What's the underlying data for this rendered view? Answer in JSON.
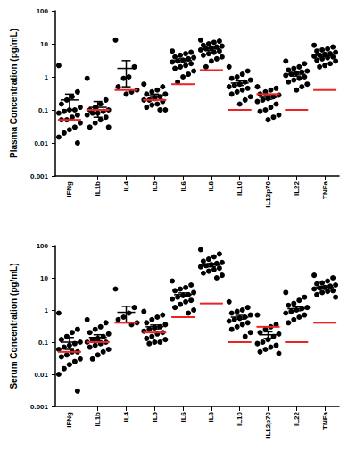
{
  "chart_data": [
    {
      "type": "scatter",
      "ylabel": "Plasma Concentration (pg/mL)",
      "categories": [
        "IFNg",
        "IL1b",
        "IL4",
        "IL5",
        "IL6",
        "IL8",
        "IL10",
        "IL12p70",
        "IL22",
        "TNFa"
      ],
      "log": "y",
      "grid": false,
      "ylim": [
        0.001,
        100
      ],
      "yticks": [
        0.001,
        0.01,
        0.1,
        1,
        10,
        100
      ],
      "series": [
        {
          "type": "scatter",
          "marker": "circle",
          "color": "#000000",
          "values": [
            [
              2.2,
              0.35,
              0.25,
              0.2,
              0.15,
              0.12,
              0.1,
              0.1,
              0.09,
              0.08,
              0.07,
              0.06,
              0.05,
              0.05,
              0.04,
              0.03,
              0.025,
              0.02,
              0.015,
              0.01
            ],
            [
              0.9,
              0.2,
              0.15,
              0.12,
              0.1,
              0.1,
              0.09,
              0.08,
              0.08,
              0.07,
              0.06,
              0.05,
              0.04,
              0.03,
              0.03
            ],
            [
              13,
              2,
              1,
              0.9,
              0.5,
              0.4,
              0.35,
              0.3
            ],
            [
              0.6,
              0.5,
              0.4,
              0.35,
              0.3,
              0.3,
              0.25,
              0.22,
              0.2,
              0.2,
              0.18,
              0.15,
              0.14,
              0.12,
              0.1,
              0.1
            ],
            [
              6,
              5.5,
              5,
              4.5,
              4,
              3.8,
              3.5,
              3.2,
              3,
              2.8,
              2.5,
              2.2,
              2,
              1.8,
              1.5,
              1.2,
              1,
              0.7
            ],
            [
              13,
              12,
              11,
              10,
              9,
              8.5,
              8,
              7.5,
              7,
              6.5,
              6,
              5.5,
              5,
              4.5,
              4,
              3.5,
              3,
              2
            ],
            [
              2,
              1.5,
              1.2,
              1,
              0.9,
              0.8,
              0.7,
              0.6,
              0.55,
              0.5,
              0.45,
              0.4,
              0.35,
              0.3,
              0.25,
              0.2,
              0.15
            ],
            [
              0.5,
              0.45,
              0.4,
              0.35,
              0.3,
              0.28,
              0.25,
              0.22,
              0.2,
              0.18,
              0.15,
              0.12,
              0.1,
              0.09,
              0.07,
              0.06,
              0.05
            ],
            [
              3,
              2.5,
              2,
              1.8,
              1.6,
              1.5,
              1.4,
              1.3,
              1.2,
              1.1,
              1,
              0.9,
              0.8,
              0.7,
              0.6,
              0.5,
              0.4
            ],
            [
              9,
              8,
              7,
              6.5,
              6,
              5.5,
              5,
              4.8,
              4.5,
              4.2,
              4,
              3.8,
              3.5,
              3.2,
              3,
              2.5,
              2.2,
              2
            ]
          ],
          "mean": [
            0.2,
            0.12,
            1.8,
            0.27,
            3.1,
            7,
            0.65,
            0.24,
            1.2,
            4.5
          ],
          "error": [
            0.1,
            0.06,
            1.3,
            0.03,
            0.4,
            0.7,
            0.1,
            0.03,
            0.15,
            0.4
          ]
        },
        {
          "type": "scatter",
          "marker": "line",
          "color": "#ee2222",
          "values": [
            0.05,
            0.1,
            0.4,
            0.2,
            0.6,
            1.6,
            0.1,
            0.3,
            0.1,
            0.4
          ]
        }
      ]
    },
    {
      "type": "scatter",
      "ylabel": "Serum Concentration (pg/mL)",
      "categories": [
        "IFNg",
        "IL1b",
        "IL4",
        "IL5",
        "IL6",
        "IL8",
        "IL10",
        "IL12p70",
        "IL22",
        "TNFa"
      ],
      "log": "y",
      "grid": false,
      "ylim": [
        0.001,
        100
      ],
      "yticks": [
        0.001,
        0.01,
        0.1,
        1,
        10,
        100
      ],
      "series": [
        {
          "type": "scatter",
          "marker": "circle",
          "color": "#000000",
          "values": [
            [
              0.8,
              0.25,
              0.2,
              0.15,
              0.12,
              0.1,
              0.09,
              0.08,
              0.07,
              0.06,
              0.05,
              0.05,
              0.04,
              0.035,
              0.03,
              0.025,
              0.02,
              0.015,
              0.01,
              0.003
            ],
            [
              0.5,
              0.4,
              0.3,
              0.25,
              0.2,
              0.18,
              0.15,
              0.13,
              0.12,
              0.1,
              0.1,
              0.09,
              0.08,
              0.07,
              0.06,
              0.05,
              0.04,
              0.03
            ],
            [
              4.5,
              1.2,
              0.8,
              0.6,
              0.5,
              0.4,
              0.35
            ],
            [
              0.9,
              0.7,
              0.6,
              0.5,
              0.4,
              0.35,
              0.3,
              0.28,
              0.25,
              0.22,
              0.2,
              0.18,
              0.15,
              0.13,
              0.12,
              0.1,
              0.1,
              0.09
            ],
            [
              8,
              6,
              5,
              4.5,
              4,
              3.5,
              3,
              2.8,
              2.5,
              2.2,
              2,
              1.8,
              1.5,
              1.2,
              1,
              0.8
            ],
            [
              75,
              55,
              45,
              38,
              33,
              30,
              28,
              26,
              24,
              22,
              20,
              18,
              16,
              14,
              12,
              10
            ],
            [
              1.8,
              1.2,
              1,
              0.9,
              0.8,
              0.7,
              0.6,
              0.55,
              0.5,
              0.45,
              0.4,
              0.35,
              0.3,
              0.25,
              0.2,
              0.15
            ],
            [
              0.7,
              0.35,
              0.3,
              0.25,
              0.2,
              0.18,
              0.15,
              0.12,
              0.1,
              0.09,
              0.08,
              0.07,
              0.06,
              0.05,
              0.045
            ],
            [
              3.5,
              2.5,
              2,
              1.6,
              1.4,
              1.2,
              1.1,
              1,
              0.9,
              0.8,
              0.7,
              0.6,
              0.5,
              0.4
            ],
            [
              12,
              10,
              8,
              7,
              6.5,
              6,
              5.5,
              5,
              4.8,
              4.5,
              4,
              3.8,
              3.5,
              3,
              2.5
            ]
          ],
          "mean": [
            0.1,
            0.14,
            0.85,
            0.3,
            3,
            25,
            0.6,
            0.17,
            1.1,
            5
          ],
          "error": [
            0.04,
            0.03,
            0.45,
            0.04,
            0.4,
            3,
            0.08,
            0.04,
            0.15,
            0.5
          ]
        },
        {
          "type": "scatter",
          "marker": "line",
          "color": "#ee2222",
          "values": [
            0.05,
            0.1,
            0.4,
            0.2,
            0.6,
            1.6,
            0.1,
            0.3,
            0.1,
            0.4
          ]
        }
      ]
    }
  ]
}
